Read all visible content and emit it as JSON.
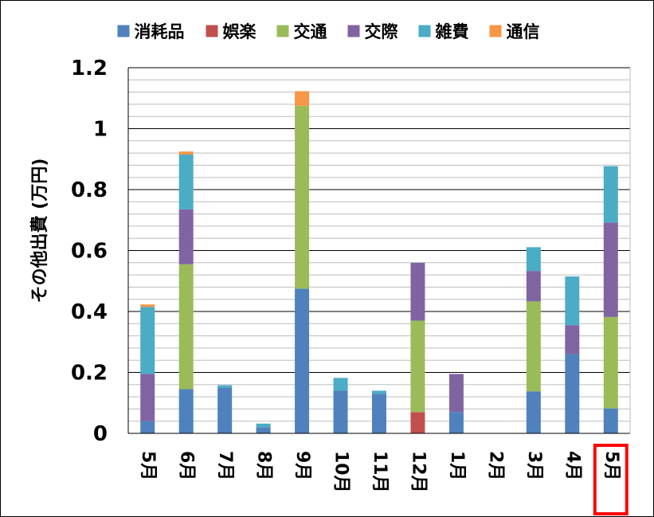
{
  "chart_data": {
    "type": "bar",
    "stacked": true,
    "title": "",
    "xlabel": "",
    "ylabel": "その他出費 (万円)",
    "ylim": [
      0,
      1.2
    ],
    "y_ticks": [
      "0",
      "0.2",
      "0.4",
      "0.6",
      "0.8",
      "1",
      "1.2"
    ],
    "y_tick_values": [
      0,
      0.2,
      0.4,
      0.6,
      0.8,
      1.0,
      1.2
    ],
    "grid": true,
    "legend_position": "top",
    "categories": [
      "5月",
      "6月",
      "7月",
      "8月",
      "9月",
      "10月",
      "11月",
      "12月",
      "1月",
      "2月",
      "3月",
      "4月",
      "5月"
    ],
    "highlight_category_index": 12,
    "highlight_color": "#ff0000",
    "series": [
      {
        "name": "消耗品",
        "color": "#4f81bd",
        "values": [
          0.04,
          0.145,
          0.15,
          0.02,
          0.475,
          0.14,
          0.13,
          0.0,
          0.07,
          0.0,
          0.138,
          0.26,
          0.082
        ]
      },
      {
        "name": "娯楽",
        "color": "#c0504d",
        "values": [
          0.0,
          0.0,
          0.0,
          0.0,
          0.0,
          0.0,
          0.0,
          0.07,
          0.0,
          0.0,
          0.0,
          0.0,
          0.0
        ]
      },
      {
        "name": "交通",
        "color": "#9bbb59",
        "values": [
          0.0,
          0.41,
          0.0,
          0.0,
          0.6,
          0.0,
          0.0,
          0.3,
          0.0,
          0.0,
          0.295,
          0.0,
          0.3
        ]
      },
      {
        "name": "交際",
        "color": "#8064a2",
        "values": [
          0.155,
          0.18,
          0.0,
          0.0,
          0.0,
          0.0,
          0.0,
          0.19,
          0.125,
          0.0,
          0.1,
          0.095,
          0.31
        ]
      },
      {
        "name": "雑費",
        "color": "#4bacc6",
        "values": [
          0.22,
          0.18,
          0.008,
          0.012,
          0.0,
          0.042,
          0.01,
          0.0,
          0.0,
          0.0,
          0.078,
          0.16,
          0.185
        ]
      },
      {
        "name": "通信",
        "color": "#f79646",
        "values": [
          0.008,
          0.01,
          0.0,
          0.0,
          0.048,
          0.0,
          0.0,
          0.0,
          0.0,
          0.0,
          0.0,
          0.0,
          0.0
        ]
      }
    ]
  }
}
